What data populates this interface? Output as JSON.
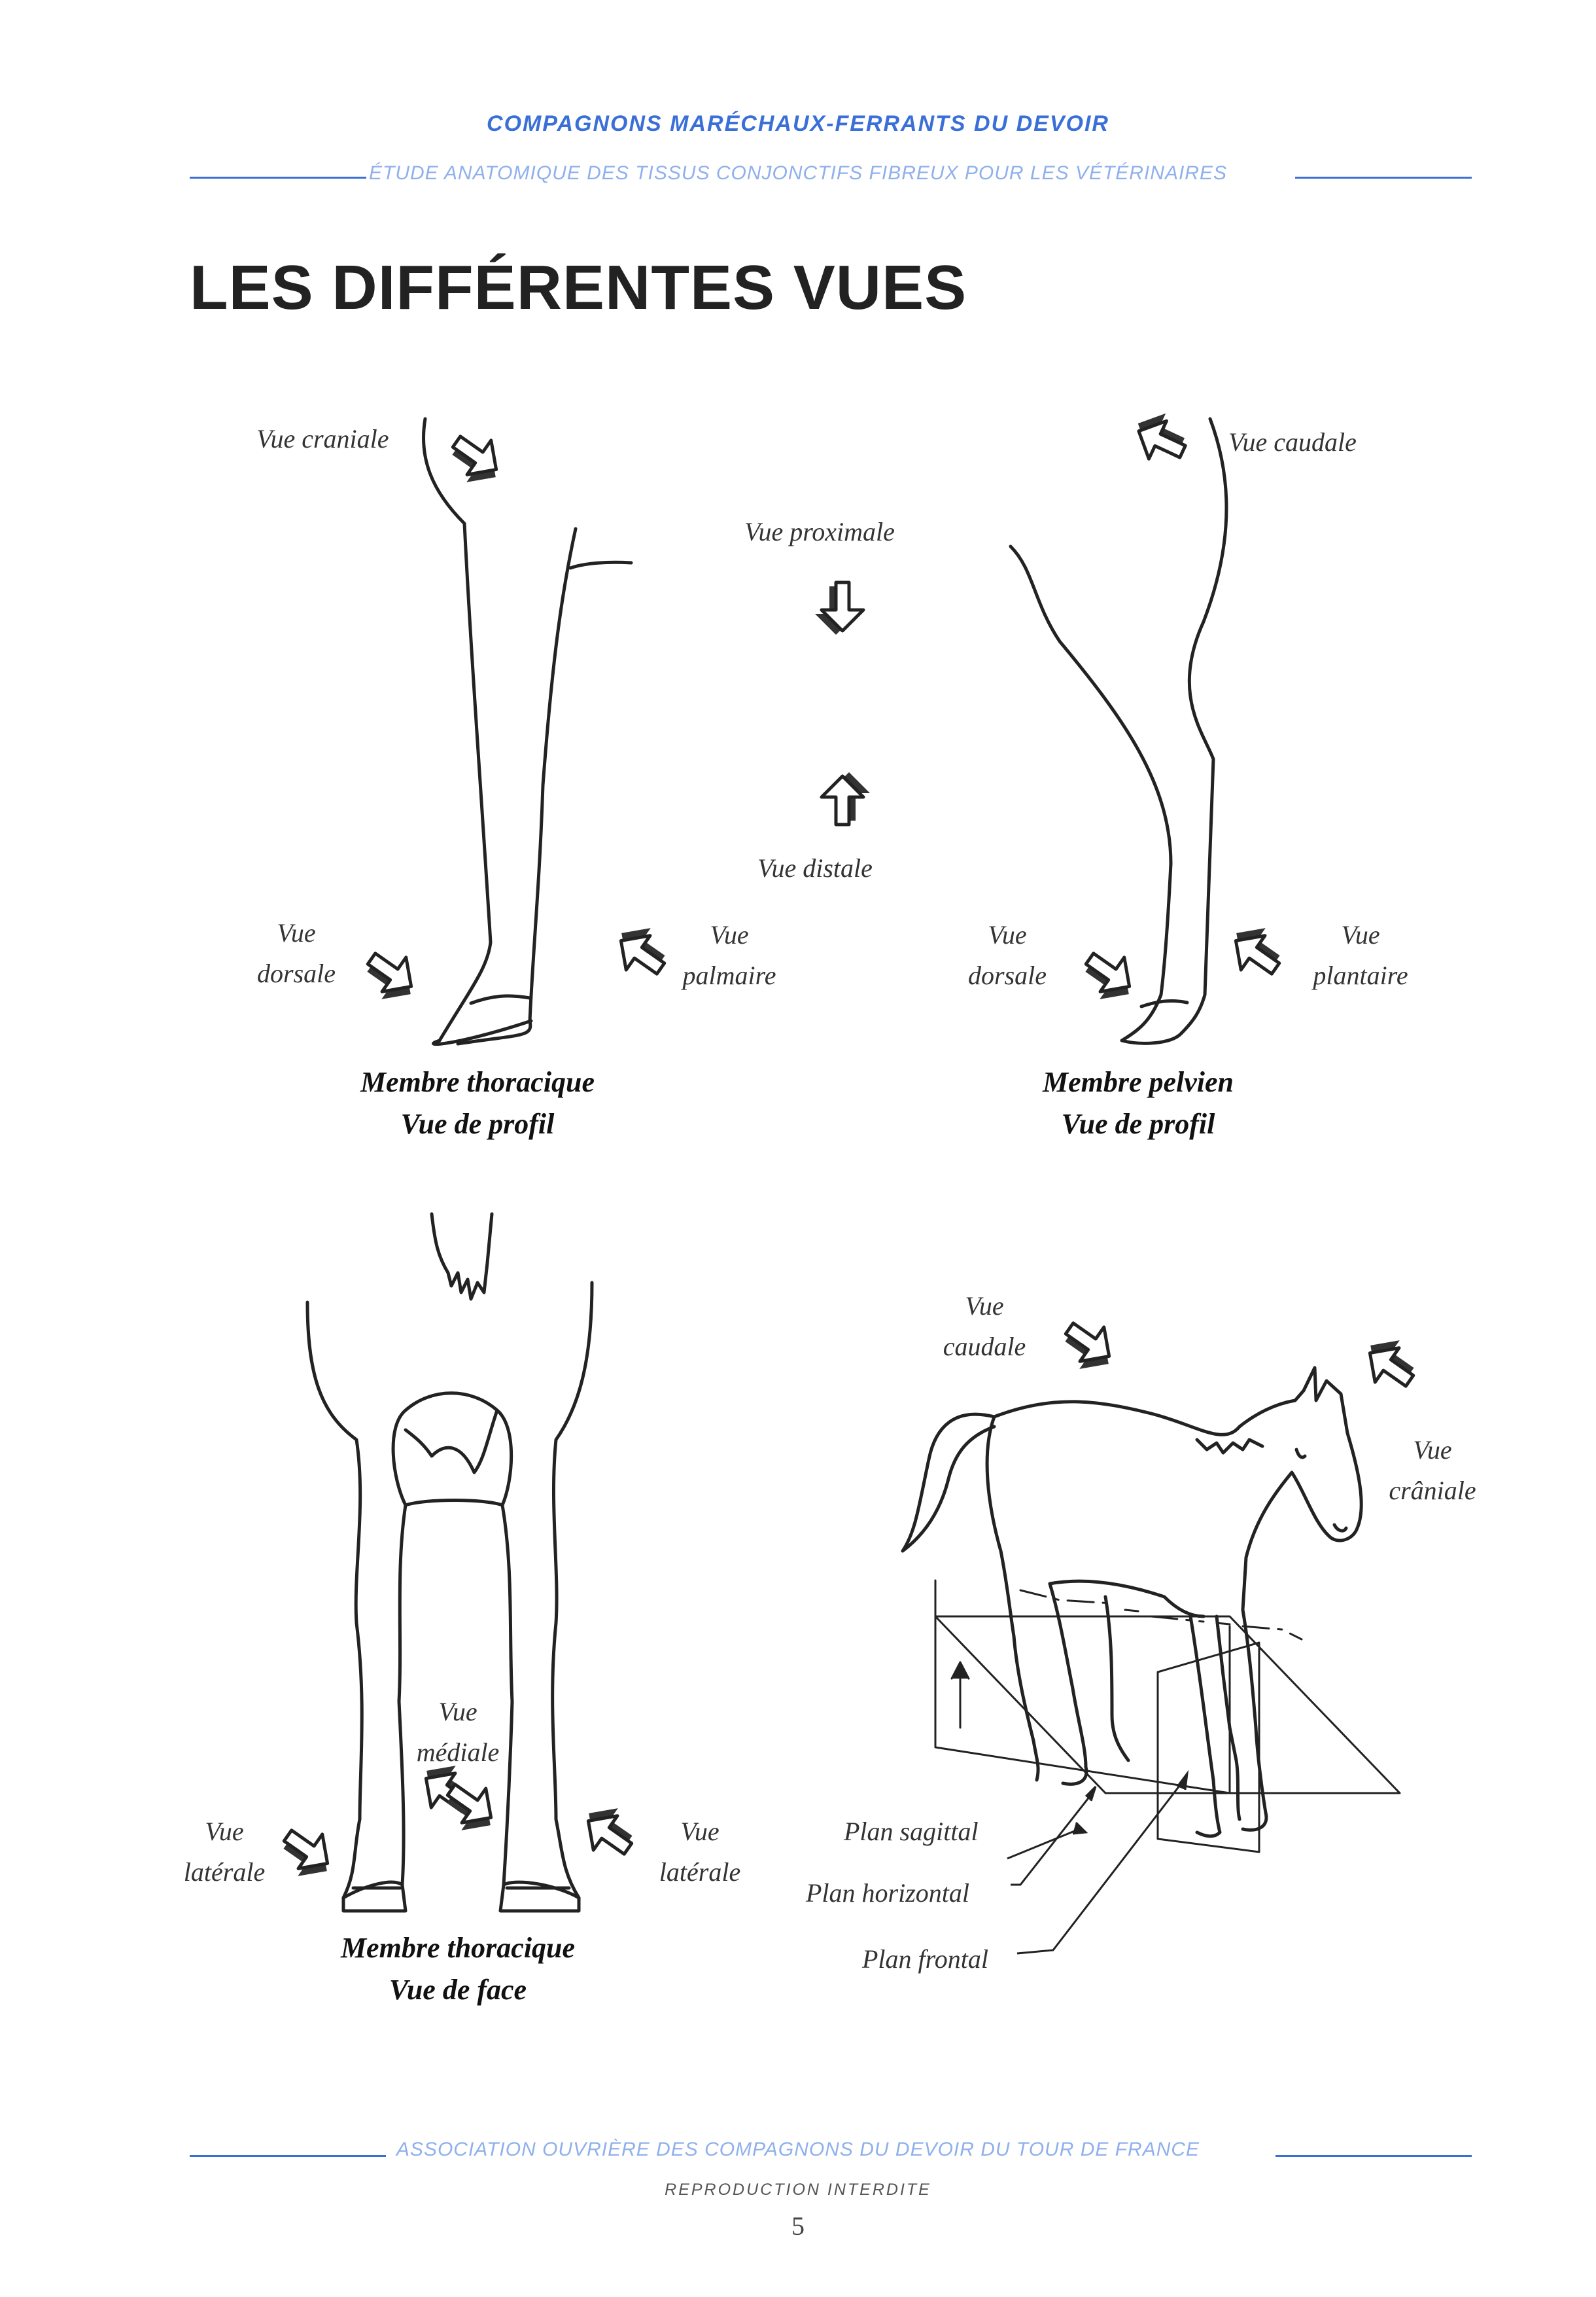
{
  "header": {
    "title": "COMPAGNONS MARÉCHAUX-FERRANTS DU DEVOIR",
    "subtitle": "ÉTUDE ANATOMIQUE DES TISSUS CONJONCTIFS FIBREUX POUR LES VÉTÉRINAIRES"
  },
  "heading": "LES DIFFÉRENTES VUES",
  "labels": {
    "vue_craniale": "Vue craniale",
    "vue_caudale": "Vue caudale",
    "vue_proximale": "Vue proximale",
    "vue_distale": "Vue distale",
    "thoracic_dorsale": [
      "Vue",
      "dorsale"
    ],
    "thoracic_palmaire": [
      "Vue",
      "palmaire"
    ],
    "pelvic_dorsale": [
      "Vue",
      "dorsale"
    ],
    "pelvic_plantaire": [
      "Vue",
      "plantaire"
    ],
    "front_mediale": [
      "Vue",
      "médiale"
    ],
    "front_laterale_left": [
      "Vue",
      "latérale"
    ],
    "front_laterale_right": [
      "Vue",
      "latérale"
    ],
    "horse_caudale": [
      "Vue",
      "caudale"
    ],
    "horse_craniale": [
      "Vue",
      "crâniale"
    ],
    "plan_sagittal": "Plan sagittal",
    "plan_horizontal": "Plan horizontal",
    "plan_frontal": "Plan frontal"
  },
  "captions": {
    "thoracic_profile": [
      "Membre thoracique",
      "Vue de profil"
    ],
    "pelvic_profile": [
      "Membre pelvien",
      "Vue de profil"
    ],
    "thoracic_front": [
      "Membre thoracique",
      "Vue de face"
    ]
  },
  "footer": {
    "main": "ASSOCIATION OUVRIÈRE DES COMPAGNONS DU DEVOIR DU TOUR DE FRANCE",
    "sub": "REPRODUCTION INTERDITE",
    "page_number": "5"
  },
  "colors": {
    "header_blue": "#3a6fd8",
    "subtitle_blue": "#8fb0ec",
    "rule_blue": "#3a6fd8",
    "ink": "#222222"
  }
}
